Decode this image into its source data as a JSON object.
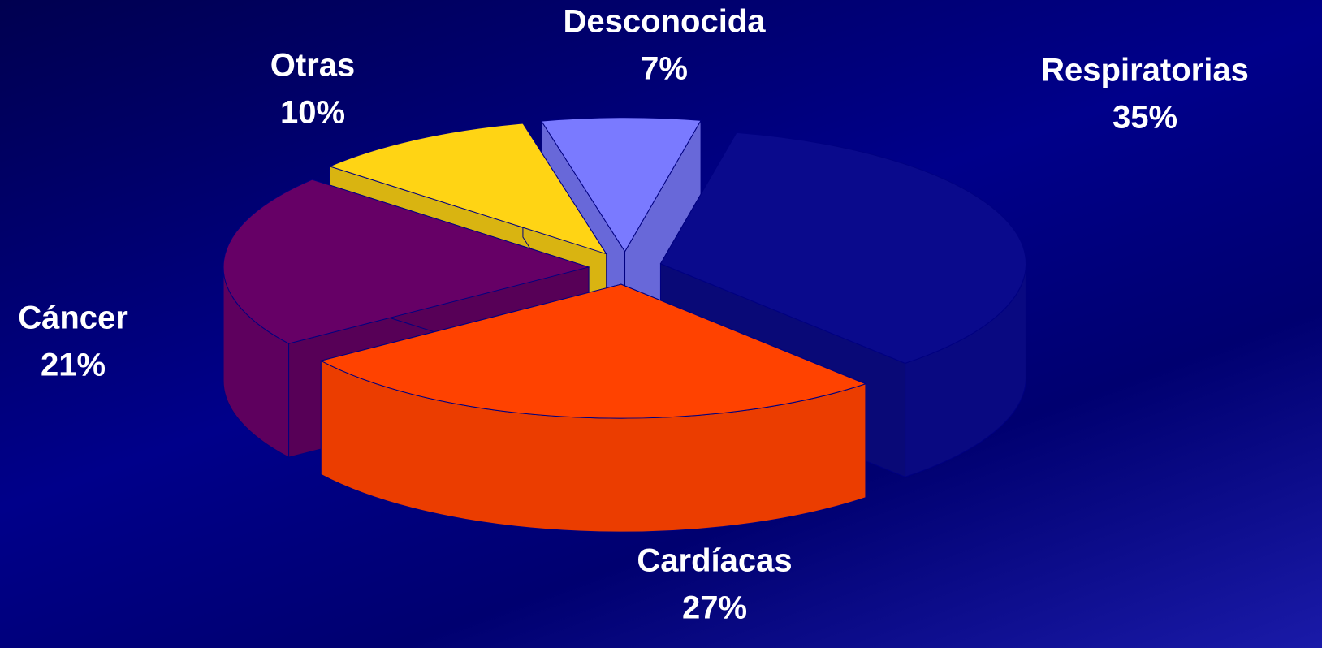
{
  "chart_data": {
    "type": "pie",
    "categories": [
      "Respiratorias",
      "Cardíacas",
      "Cáncer",
      "Otras",
      "Desconocida"
    ],
    "values": [
      35,
      27,
      21,
      10,
      7
    ],
    "value_labels": [
      "35%",
      "27%",
      "21%",
      "10%",
      "7%"
    ],
    "colors": [
      "#0a0a8c",
      "#ff4200",
      "#660066",
      "#ffd414",
      "#7a7aff"
    ]
  }
}
